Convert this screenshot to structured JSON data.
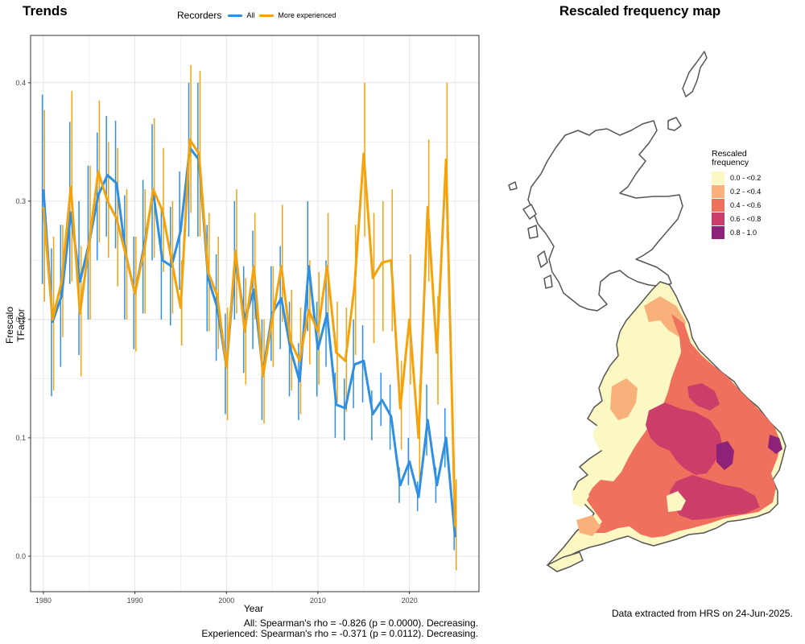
{
  "trend_panel": {
    "title": "Trends"
  },
  "map_panel": {
    "title": "Rescaled frequency map",
    "legend_title_line1": "Rescaled",
    "legend_title_line2": "frequency",
    "legend": [
      {
        "label": "0.0 - <0.2",
        "color": "#FCF8C3"
      },
      {
        "label": "0.2 - <0.4",
        "color": "#F8B17A"
      },
      {
        "label": "0.4 - <0.6",
        "color": "#F0705E"
      },
      {
        "label": "0.6 - <0.8",
        "color": "#CC3E6A"
      },
      {
        "label": "0.8 - 1.0",
        "color": "#8E2279"
      }
    ],
    "outline_color": "#555555"
  },
  "legend": {
    "title": "Recorders",
    "all_label": "All",
    "experienced_label": "More experienced"
  },
  "stats": {
    "all": "All: Spearman's rho = -0.826 (p = 0.0000). Decreasing.",
    "experienced": "Experienced: Spearman's rho = -0.371 (p = 0.0112). Decreasing."
  },
  "footer": {
    "extracted": "Data extracted from HRS on 24-Jun-2025."
  },
  "chart_data": {
    "type": "line",
    "xlabel": "Year",
    "ylabel": "Frescalo TFactor",
    "xlim": [
      1978.6,
      2027.6
    ],
    "ylim": [
      -0.03,
      0.44
    ],
    "x_ticks": [
      1980,
      1990,
      2000,
      2010,
      2020
    ],
    "y_ticks": [
      0.0,
      0.1,
      0.2,
      0.3,
      0.4
    ],
    "y_tick_labels": [
      "0.0",
      "0.1",
      "0.2",
      "0.3",
      "0.4"
    ],
    "grid": true,
    "legend_position": "top",
    "x": [
      1980,
      1981,
      1982,
      1983,
      1984,
      1985,
      1986,
      1987,
      1988,
      1989,
      1990,
      1991,
      1992,
      1993,
      1994,
      1995,
      1996,
      1997,
      1998,
      1999,
      2000,
      2001,
      2002,
      2003,
      2004,
      2005,
      2006,
      2007,
      2008,
      2009,
      2010,
      2011,
      2012,
      2013,
      2014,
      2015,
      2016,
      2017,
      2018,
      2019,
      2020,
      2021,
      2022,
      2023,
      2024,
      2025
    ],
    "series": [
      {
        "name": "All",
        "color": "#2F8FE3",
        "values": [
          0.31,
          0.198,
          0.22,
          0.29,
          0.232,
          0.265,
          0.305,
          0.322,
          0.315,
          0.255,
          0.222,
          0.262,
          0.308,
          0.25,
          0.245,
          0.275,
          0.345,
          0.335,
          0.235,
          0.21,
          0.16,
          0.25,
          0.2,
          0.225,
          0.155,
          0.205,
          0.218,
          0.175,
          0.148,
          0.245,
          0.175,
          0.205,
          0.128,
          0.125,
          0.162,
          0.165,
          0.12,
          0.132,
          0.118,
          0.06,
          0.08,
          0.05,
          0.115,
          0.06,
          0.1,
          0.016
        ],
        "lower": [
          0.23,
          0.135,
          0.16,
          0.23,
          0.17,
          0.2,
          0.25,
          0.27,
          0.26,
          0.2,
          0.175,
          0.205,
          0.25,
          0.2,
          0.195,
          0.225,
          0.27,
          0.27,
          0.19,
          0.165,
          0.12,
          0.2,
          0.155,
          0.175,
          0.115,
          0.165,
          0.175,
          0.135,
          0.115,
          0.19,
          0.135,
          0.16,
          0.1,
          0.098,
          0.125,
          0.13,
          0.098,
          0.11,
          0.09,
          0.045,
          0.06,
          0.038,
          0.085,
          0.045,
          0.075,
          0.005
        ],
        "upper": [
          0.39,
          0.26,
          0.28,
          0.367,
          0.3,
          0.33,
          0.358,
          0.372,
          0.368,
          0.305,
          0.27,
          0.318,
          0.365,
          0.295,
          0.295,
          0.325,
          0.4,
          0.4,
          0.28,
          0.255,
          0.205,
          0.3,
          0.245,
          0.275,
          0.2,
          0.245,
          0.262,
          0.215,
          0.18,
          0.3,
          0.215,
          0.25,
          0.155,
          0.15,
          0.2,
          0.195,
          0.14,
          0.155,
          0.145,
          0.075,
          0.1,
          0.063,
          0.145,
          0.075,
          0.125,
          0.028
        ]
      },
      {
        "name": "More experienced",
        "color": "#F4A30C",
        "values": [
          0.295,
          0.2,
          0.232,
          0.312,
          0.205,
          0.265,
          0.325,
          0.3,
          0.285,
          0.255,
          0.222,
          0.258,
          0.31,
          0.292,
          0.25,
          0.21,
          0.352,
          0.34,
          0.24,
          0.22,
          0.16,
          0.258,
          0.19,
          0.245,
          0.152,
          0.2,
          0.245,
          0.182,
          0.165,
          0.208,
          0.19,
          0.245,
          0.172,
          0.165,
          0.228,
          0.34,
          0.235,
          0.248,
          0.25,
          0.125,
          0.2,
          0.1,
          0.295,
          0.172,
          0.335,
          0.025
        ],
        "lower": [
          0.215,
          0.14,
          0.185,
          0.232,
          0.152,
          0.2,
          0.265,
          0.252,
          0.228,
          0.2,
          0.173,
          0.205,
          0.252,
          0.24,
          0.205,
          0.178,
          0.29,
          0.27,
          0.19,
          0.175,
          0.115,
          0.205,
          0.145,
          0.2,
          0.112,
          0.16,
          0.198,
          0.14,
          0.12,
          0.162,
          0.145,
          0.2,
          0.13,
          0.122,
          0.17,
          0.27,
          0.18,
          0.19,
          0.19,
          0.09,
          0.145,
          0.062,
          0.232,
          0.128,
          0.268,
          -0.012
        ],
        "upper": [
          0.377,
          0.27,
          0.28,
          0.393,
          0.262,
          0.33,
          0.385,
          0.35,
          0.345,
          0.31,
          0.27,
          0.31,
          0.37,
          0.345,
          0.3,
          0.25,
          0.415,
          0.41,
          0.29,
          0.27,
          0.21,
          0.31,
          0.235,
          0.29,
          0.2,
          0.245,
          0.297,
          0.225,
          0.21,
          0.25,
          0.24,
          0.29,
          0.215,
          0.21,
          0.28,
          0.4,
          0.29,
          0.3,
          0.31,
          0.165,
          0.255,
          0.145,
          0.352,
          0.22,
          0.4,
          0.065
        ]
      }
    ]
  }
}
